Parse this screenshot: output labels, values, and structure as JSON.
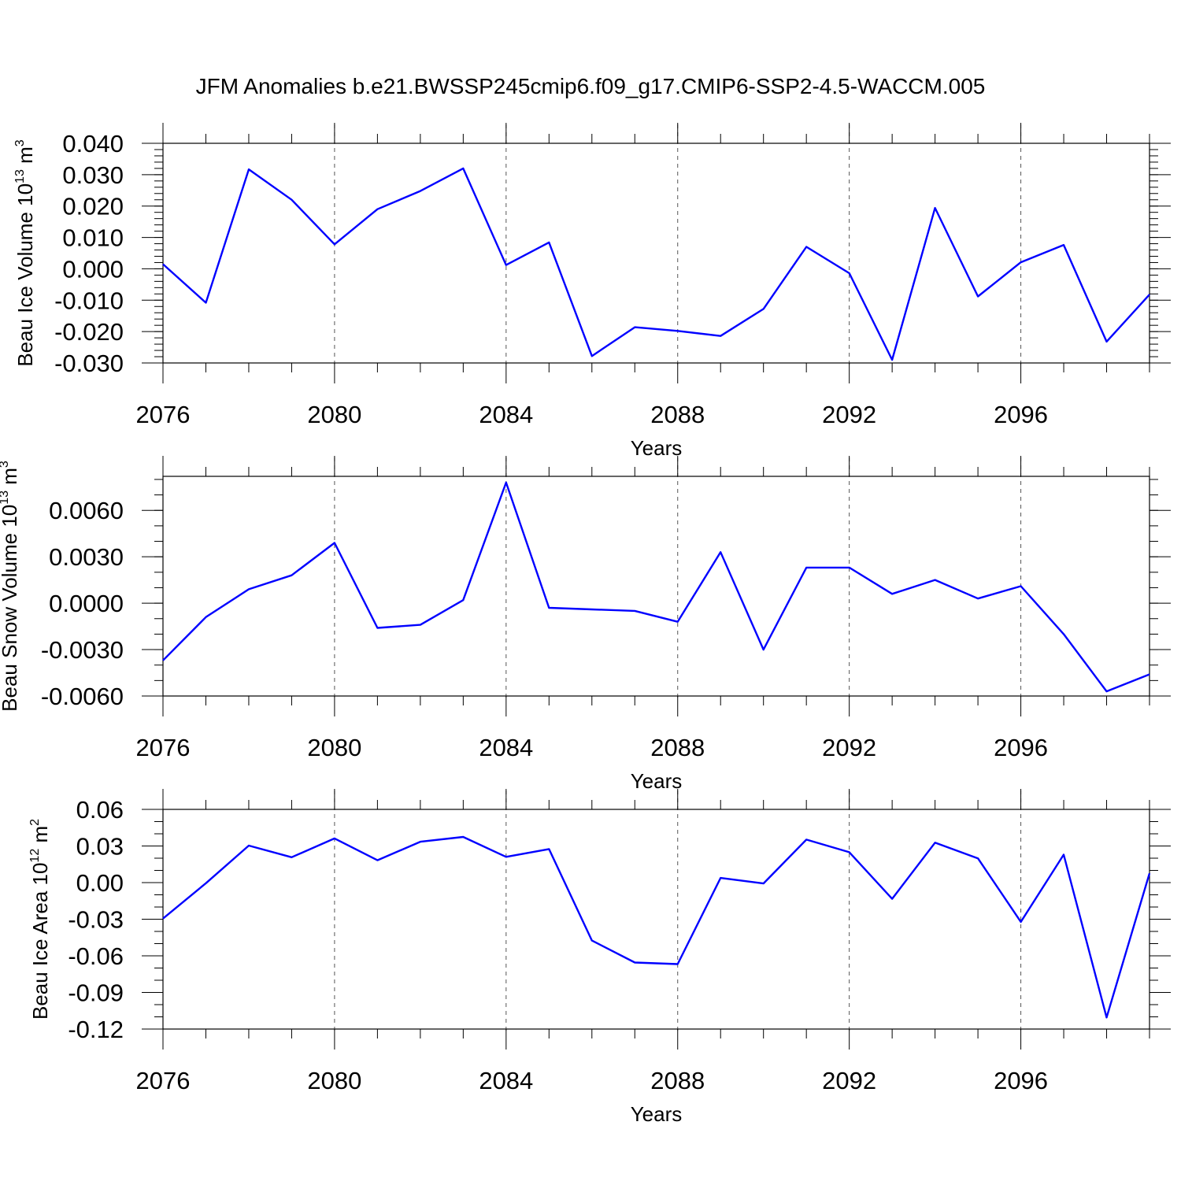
{
  "title": "JFM Anomalies b.e21.BWSSP245cmip6.f09_g17.CMIP6-SSP2-4.5-WACCM.005",
  "colors": {
    "line": "#0000ff",
    "axis": "#000000",
    "grid": "#555555"
  },
  "chart_data": [
    {
      "type": "line",
      "ylabel": {
        "main": "Beau Ice Volume 10",
        "exp": "13",
        "unit": " m",
        "unit_exp": "3"
      },
      "xlabel": "Years",
      "xlim": [
        2076,
        2099
      ],
      "ylim": [
        -0.03,
        0.04
      ],
      "yticks": [
        -0.03,
        -0.02,
        -0.01,
        0.0,
        0.01,
        0.02,
        0.03,
        0.04
      ],
      "yticklabels": [
        "-0.030",
        "-0.020",
        "-0.010",
        "0.000",
        "0.010",
        "0.020",
        "0.030",
        "0.040"
      ],
      "ymajorstep": 0.01,
      "yminorstep": 0.002,
      "xticks": [
        2076,
        2080,
        2084,
        2088,
        2092,
        2096
      ],
      "xticklabels": [
        "2076",
        "2080",
        "2084",
        "2088",
        "2092",
        "2096"
      ],
      "x": [
        2076,
        2077,
        2078,
        2079,
        2080,
        2081,
        2082,
        2083,
        2084,
        2085,
        2086,
        2087,
        2088,
        2089,
        2090,
        2091,
        2092,
        2093,
        2094,
        2095,
        2096,
        2097,
        2098,
        2099
      ],
      "values": [
        0.0015,
        -0.0108,
        0.0317,
        0.022,
        0.0078,
        0.019,
        0.0248,
        0.032,
        0.0012,
        0.0084,
        -0.0278,
        -0.0186,
        -0.0198,
        -0.0214,
        -0.0128,
        0.007,
        -0.0014,
        -0.029,
        0.0194,
        -0.0088,
        0.0021,
        0.0076,
        -0.0232,
        -0.0082
      ]
    },
    {
      "type": "line",
      "ylabel": {
        "main": "Beau Snow Volume 10",
        "exp": "13",
        "unit": " m",
        "unit_exp": "3"
      },
      "xlabel": "Years",
      "xlim": [
        2076,
        2099
      ],
      "ylim": [
        -0.006,
        0.0082
      ],
      "yticks": [
        -0.006,
        -0.003,
        0.0,
        0.003,
        0.006
      ],
      "yticklabels": [
        "-0.0060",
        "-0.0030",
        "0.0000",
        "0.0030",
        "0.0060"
      ],
      "ymajorstep": 0.003,
      "yminorstep": 0.001,
      "xticks": [
        2076,
        2080,
        2084,
        2088,
        2092,
        2096
      ],
      "xticklabels": [
        "2076",
        "2080",
        "2084",
        "2088",
        "2092",
        "2096"
      ],
      "x": [
        2076,
        2077,
        2078,
        2079,
        2080,
        2081,
        2082,
        2083,
        2084,
        2085,
        2086,
        2087,
        2088,
        2089,
        2090,
        2091,
        2092,
        2093,
        2094,
        2095,
        2096,
        2097,
        2098,
        2099
      ],
      "values": [
        -0.0037,
        -0.0009,
        0.0009,
        0.0018,
        0.0039,
        -0.0016,
        -0.0014,
        0.0002,
        0.0078,
        -0.0003,
        -0.0004,
        -0.0005,
        -0.0012,
        0.0033,
        -0.003,
        0.0023,
        0.0023,
        0.0006,
        0.0015,
        0.0003,
        0.0011,
        -0.002,
        -0.0057,
        -0.0046
      ]
    },
    {
      "type": "line",
      "ylabel": {
        "main": "Beau Ice Area 10",
        "exp": "12",
        "unit": " m",
        "unit_exp": "2"
      },
      "xlabel": "Years",
      "xlim": [
        2076,
        2099
      ],
      "ylim": [
        -0.12,
        0.06
      ],
      "yticks": [
        -0.12,
        -0.09,
        -0.06,
        -0.03,
        0.0,
        0.03,
        0.06
      ],
      "yticklabels": [
        "-0.12",
        "-0.09",
        "-0.06",
        "-0.03",
        "0.00",
        "0.03",
        "0.06"
      ],
      "ymajorstep": 0.03,
      "yminorstep": 0.01,
      "xticks": [
        2076,
        2080,
        2084,
        2088,
        2092,
        2096
      ],
      "xticklabels": [
        "2076",
        "2080",
        "2084",
        "2088",
        "2092",
        "2096"
      ],
      "x": [
        2076,
        2077,
        2078,
        2079,
        2080,
        2081,
        2082,
        2083,
        2084,
        2085,
        2086,
        2087,
        2088,
        2089,
        2090,
        2091,
        2092,
        2093,
        2094,
        2095,
        2096,
        2097,
        2098,
        2099
      ],
      "values": [
        -0.0295,
        -0.0005,
        0.0303,
        0.0208,
        0.0362,
        0.0183,
        0.0335,
        0.0374,
        0.0211,
        0.0275,
        -0.0475,
        -0.0655,
        -0.0668,
        0.0038,
        -0.0007,
        0.0352,
        0.0249,
        -0.0133,
        0.0327,
        0.0199,
        -0.0322,
        0.0229,
        -0.1105,
        0.0076
      ]
    }
  ]
}
